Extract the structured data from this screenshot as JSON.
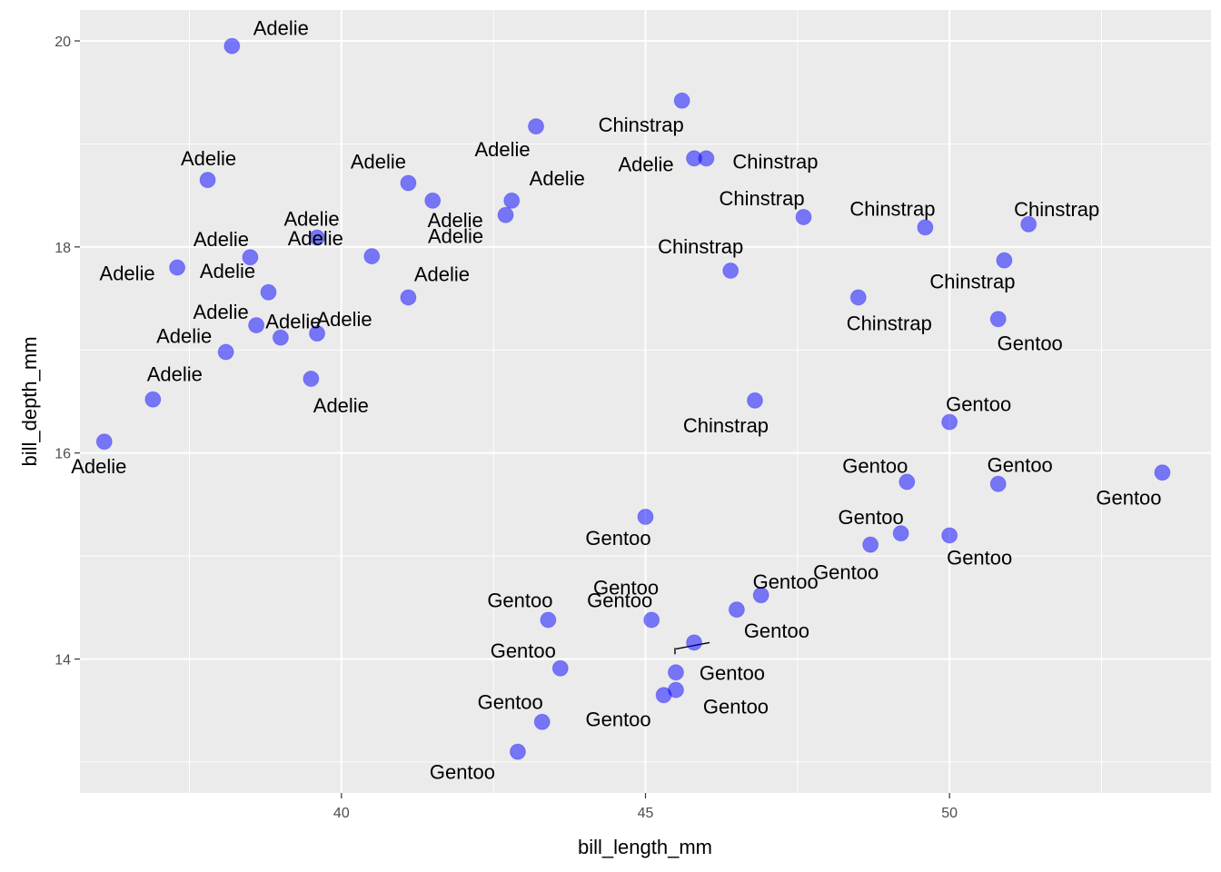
{
  "chart_data": {
    "type": "scatter",
    "title": "",
    "xlabel": "bill_length_mm",
    "ylabel": "bill_depth_mm",
    "xlim": [
      35.7,
      54.3
    ],
    "ylim": [
      12.7,
      20.3
    ],
    "x_ticks": [
      40,
      45,
      50
    ],
    "y_ticks": [
      14,
      16,
      18,
      20
    ],
    "x_tick_labels": [
      "40",
      "45",
      "50"
    ],
    "y_tick_labels": [
      "14",
      "16",
      "18",
      "20"
    ],
    "grid": true,
    "legend": "none",
    "point_color": "#0000ff",
    "point_alpha": 0.5,
    "panel_background": "#ebebeb",
    "grid_color": "#ffffff",
    "points": [
      {
        "x": 38.2,
        "y": 19.95,
        "label": "Adelie"
      },
      {
        "x": 37.8,
        "y": 18.65,
        "label": "Adelie"
      },
      {
        "x": 41.1,
        "y": 18.62,
        "label": "Adelie"
      },
      {
        "x": 41.5,
        "y": 18.45,
        "label": "Adelie"
      },
      {
        "x": 43.2,
        "y": 19.17,
        "label": "Adelie"
      },
      {
        "x": 42.8,
        "y": 18.45,
        "label": "Adelie"
      },
      {
        "x": 42.7,
        "y": 18.31,
        "label": "Adelie"
      },
      {
        "x": 39.6,
        "y": 18.09,
        "label": "Adelie"
      },
      {
        "x": 38.5,
        "y": 17.9,
        "label": "Adelie"
      },
      {
        "x": 37.3,
        "y": 17.8,
        "label": "Adelie"
      },
      {
        "x": 40.5,
        "y": 17.91,
        "label": "Adelie"
      },
      {
        "x": 38.8,
        "y": 17.56,
        "label": "Adelie"
      },
      {
        "x": 41.1,
        "y": 17.51,
        "label": "Adelie"
      },
      {
        "x": 38.6,
        "y": 17.24,
        "label": "Adelie"
      },
      {
        "x": 39.6,
        "y": 17.16,
        "label": "Adelie"
      },
      {
        "x": 39.0,
        "y": 17.12,
        "label": "Adelie"
      },
      {
        "x": 38.1,
        "y": 16.98,
        "label": "Adelie"
      },
      {
        "x": 39.5,
        "y": 16.72,
        "label": "Adelie"
      },
      {
        "x": 36.9,
        "y": 16.52,
        "label": "Adelie"
      },
      {
        "x": 36.1,
        "y": 16.11,
        "label": "Adelie"
      },
      {
        "x": 45.6,
        "y": 19.42,
        "label": "Chinstrap"
      },
      {
        "x": 45.8,
        "y": 18.86,
        "label": "Adelie"
      },
      {
        "x": 46.0,
        "y": 18.86,
        "label": "Chinstrap"
      },
      {
        "x": 47.6,
        "y": 18.29,
        "label": "Chinstrap"
      },
      {
        "x": 49.6,
        "y": 18.19,
        "label": "Chinstrap"
      },
      {
        "x": 51.3,
        "y": 18.22,
        "label": "Chinstrap"
      },
      {
        "x": 46.4,
        "y": 17.77,
        "label": "Chinstrap"
      },
      {
        "x": 50.9,
        "y": 17.87,
        "label": "Chinstrap"
      },
      {
        "x": 48.5,
        "y": 17.51,
        "label": "Chinstrap"
      },
      {
        "x": 50.8,
        "y": 17.3,
        "label": "Gentoo"
      },
      {
        "x": 46.8,
        "y": 16.51,
        "label": "Chinstrap"
      },
      {
        "x": 50.0,
        "y": 16.3,
        "label": "Gentoo"
      },
      {
        "x": 49.3,
        "y": 15.72,
        "label": "Gentoo"
      },
      {
        "x": 50.8,
        "y": 15.7,
        "label": "Gentoo"
      },
      {
        "x": 53.5,
        "y": 15.81,
        "label": "Gentoo"
      },
      {
        "x": 45.0,
        "y": 15.38,
        "label": "Gentoo"
      },
      {
        "x": 49.2,
        "y": 15.22,
        "label": "Gentoo"
      },
      {
        "x": 50.0,
        "y": 15.2,
        "label": "Gentoo"
      },
      {
        "x": 48.7,
        "y": 15.11,
        "label": "Gentoo"
      },
      {
        "x": 46.9,
        "y": 14.62,
        "label": "Gentoo"
      },
      {
        "x": 46.5,
        "y": 14.48,
        "label": "Gentoo"
      },
      {
        "x": 43.4,
        "y": 14.38,
        "label": "Gentoo"
      },
      {
        "x": 45.1,
        "y": 14.38,
        "label": "Gentoo"
      },
      {
        "x": 45.8,
        "y": 14.16,
        "label": "Gentoo"
      },
      {
        "x": 43.6,
        "y": 13.91,
        "label": "Gentoo"
      },
      {
        "x": 45.5,
        "y": 13.87,
        "label": "Gentoo"
      },
      {
        "x": 45.5,
        "y": 13.7,
        "label": "Gentoo"
      },
      {
        "x": 45.3,
        "y": 13.65,
        "label": "Gentoo"
      },
      {
        "x": 43.3,
        "y": 13.39,
        "label": "Gentoo"
      },
      {
        "x": 42.9,
        "y": 13.1,
        "label": "Gentoo"
      }
    ]
  }
}
